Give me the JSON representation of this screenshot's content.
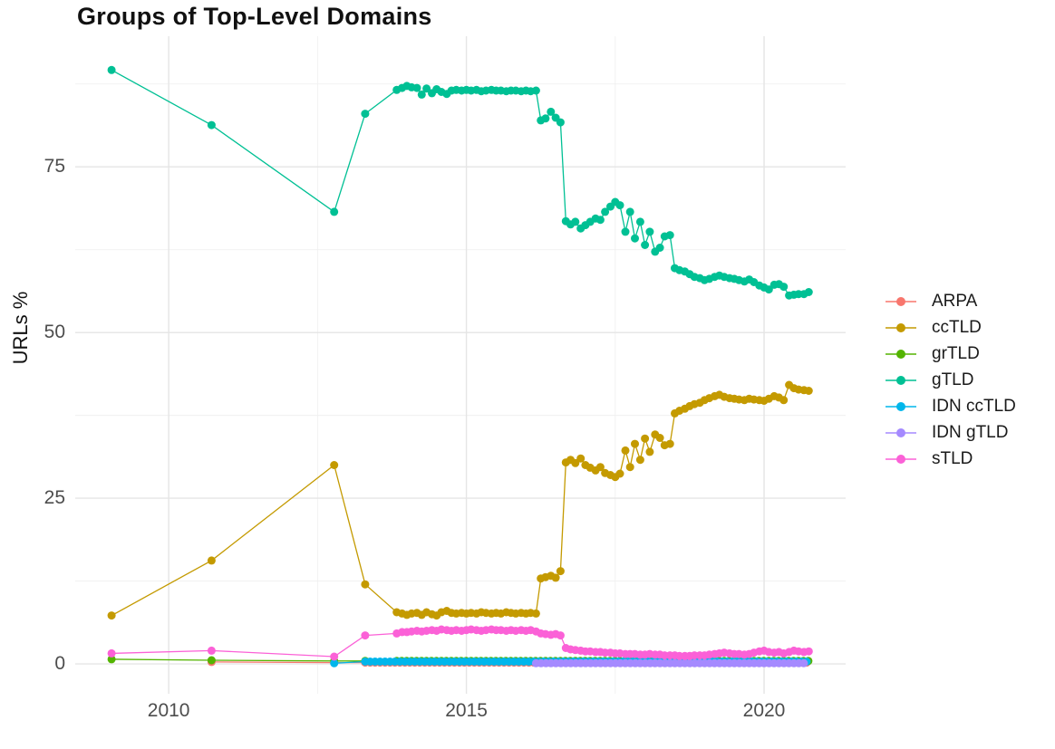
{
  "chart_data": {
    "type": "line",
    "title": "Groups of Top-Level Domains",
    "xlabel": "",
    "ylabel": "URLs %",
    "grid": "on",
    "legend_position": "right",
    "x_axis": {
      "ticks": [
        2010,
        2015,
        2020
      ],
      "minor_ticks": [
        2012.5,
        2017.5
      ],
      "domain": [
        2008.43,
        2021.37
      ]
    },
    "y_axis": {
      "ticks": [
        0,
        25,
        50,
        75
      ],
      "minor_ticks": [
        12.5,
        37.5,
        62.5,
        87.5
      ],
      "domain": [
        -4.5,
        94.7
      ]
    },
    "colors": {
      "major_grid": "#e5e5e5",
      "minor_grid": "#f0f0f0",
      "axis_text": "#4d4d4d",
      "title_text": "#111111"
    },
    "series": [
      {
        "name": "ARPA",
        "color": "#F8766D",
        "points": [
          [
            2010.72,
            0.3
          ],
          [
            2012.78,
            0.2
          ]
        ],
        "run": {
          "from": 2013.3,
          "to": 2020.75,
          "step": 0.0833,
          "value": 0.2
        }
      },
      {
        "name": "ccTLD",
        "color": "#C49A00",
        "points": [
          [
            2009.04,
            7.3
          ],
          [
            2010.72,
            15.6
          ],
          [
            2012.78,
            30.0
          ],
          [
            2013.3,
            12.0
          ],
          [
            2013.83,
            7.8
          ],
          [
            2013.92,
            7.6
          ],
          [
            2014.0,
            7.4
          ],
          [
            2014.08,
            7.6
          ],
          [
            2014.17,
            7.7
          ],
          [
            2014.25,
            7.4
          ],
          [
            2014.33,
            7.8
          ],
          [
            2014.42,
            7.5
          ],
          [
            2014.5,
            7.3
          ],
          [
            2014.58,
            7.8
          ],
          [
            2014.67,
            8.0
          ],
          [
            2014.75,
            7.7
          ],
          [
            2014.83,
            7.6
          ],
          [
            2014.92,
            7.7
          ],
          [
            2015.0,
            7.6
          ],
          [
            2015.08,
            7.7
          ],
          [
            2015.17,
            7.6
          ],
          [
            2015.25,
            7.8
          ],
          [
            2015.33,
            7.7
          ],
          [
            2015.42,
            7.6
          ],
          [
            2015.5,
            7.7
          ],
          [
            2015.58,
            7.6
          ],
          [
            2015.67,
            7.8
          ],
          [
            2015.75,
            7.7
          ],
          [
            2015.83,
            7.6
          ],
          [
            2015.92,
            7.7
          ],
          [
            2016.0,
            7.6
          ],
          [
            2016.08,
            7.7
          ],
          [
            2016.17,
            7.6
          ],
          [
            2016.25,
            12.9
          ],
          [
            2016.33,
            13.1
          ],
          [
            2016.42,
            13.3
          ],
          [
            2016.5,
            13.0
          ],
          [
            2016.58,
            14.0
          ],
          [
            2016.67,
            30.4
          ],
          [
            2016.75,
            30.8
          ],
          [
            2016.83,
            30.3
          ],
          [
            2016.92,
            31.0
          ],
          [
            2017.0,
            30.0
          ],
          [
            2017.08,
            29.6
          ],
          [
            2017.17,
            29.2
          ],
          [
            2017.25,
            29.7
          ],
          [
            2017.33,
            28.8
          ],
          [
            2017.42,
            28.5
          ],
          [
            2017.5,
            28.2
          ],
          [
            2017.58,
            28.7
          ],
          [
            2017.67,
            32.2
          ],
          [
            2017.75,
            29.7
          ],
          [
            2017.83,
            33.2
          ],
          [
            2017.92,
            30.8
          ],
          [
            2018.0,
            34.0
          ],
          [
            2018.08,
            32.0
          ],
          [
            2018.17,
            34.6
          ],
          [
            2018.25,
            34.1
          ],
          [
            2018.33,
            33.0
          ],
          [
            2018.42,
            33.2
          ],
          [
            2018.5,
            37.8
          ],
          [
            2018.58,
            38.2
          ],
          [
            2018.67,
            38.5
          ],
          [
            2018.75,
            38.9
          ],
          [
            2018.83,
            39.2
          ],
          [
            2018.92,
            39.4
          ],
          [
            2019.0,
            39.8
          ],
          [
            2019.08,
            40.1
          ],
          [
            2019.17,
            40.4
          ],
          [
            2019.25,
            40.6
          ],
          [
            2019.33,
            40.3
          ],
          [
            2019.42,
            40.1
          ],
          [
            2019.5,
            40.0
          ],
          [
            2019.58,
            39.9
          ],
          [
            2019.67,
            39.8
          ],
          [
            2019.75,
            40.0
          ],
          [
            2019.83,
            39.9
          ],
          [
            2019.92,
            39.8
          ],
          [
            2020.0,
            39.7
          ],
          [
            2020.08,
            40.0
          ],
          [
            2020.17,
            40.4
          ],
          [
            2020.25,
            40.2
          ],
          [
            2020.33,
            39.8
          ],
          [
            2020.42,
            42.1
          ],
          [
            2020.5,
            41.6
          ],
          [
            2020.58,
            41.4
          ],
          [
            2020.67,
            41.3
          ],
          [
            2020.75,
            41.2
          ]
        ]
      },
      {
        "name": "grTLD",
        "color": "#53B400",
        "points": [
          [
            2009.04,
            0.7
          ],
          [
            2010.72,
            0.55
          ],
          [
            2012.78,
            0.45
          ],
          [
            2013.3,
            0.45
          ]
        ],
        "run": {
          "from": 2013.83,
          "to": 2020.75,
          "step": 0.0833,
          "value": 0.45
        }
      },
      {
        "name": "gTLD",
        "color": "#00C094",
        "points": [
          [
            2009.04,
            89.6
          ],
          [
            2010.72,
            81.3
          ],
          [
            2012.78,
            68.2
          ],
          [
            2013.3,
            83.0
          ],
          [
            2013.83,
            86.6
          ],
          [
            2013.92,
            86.9
          ],
          [
            2014.0,
            87.2
          ],
          [
            2014.08,
            87.0
          ],
          [
            2014.17,
            86.9
          ],
          [
            2014.25,
            85.9
          ],
          [
            2014.33,
            86.8
          ],
          [
            2014.42,
            86.1
          ],
          [
            2014.5,
            86.7
          ],
          [
            2014.58,
            86.3
          ],
          [
            2014.67,
            86.0
          ],
          [
            2014.75,
            86.5
          ],
          [
            2014.83,
            86.6
          ],
          [
            2014.92,
            86.5
          ],
          [
            2015.0,
            86.6
          ],
          [
            2015.08,
            86.5
          ],
          [
            2015.17,
            86.6
          ],
          [
            2015.25,
            86.4
          ],
          [
            2015.33,
            86.5
          ],
          [
            2015.42,
            86.6
          ],
          [
            2015.5,
            86.5
          ],
          [
            2015.58,
            86.5
          ],
          [
            2015.67,
            86.4
          ],
          [
            2015.75,
            86.5
          ],
          [
            2015.83,
            86.5
          ],
          [
            2015.92,
            86.4
          ],
          [
            2016.0,
            86.5
          ],
          [
            2016.08,
            86.4
          ],
          [
            2016.17,
            86.5
          ],
          [
            2016.25,
            82.0
          ],
          [
            2016.33,
            82.3
          ],
          [
            2016.42,
            83.3
          ],
          [
            2016.5,
            82.4
          ],
          [
            2016.58,
            81.7
          ],
          [
            2016.67,
            66.8
          ],
          [
            2016.75,
            66.3
          ],
          [
            2016.83,
            66.7
          ],
          [
            2016.92,
            65.7
          ],
          [
            2017.0,
            66.2
          ],
          [
            2017.08,
            66.7
          ],
          [
            2017.17,
            67.2
          ],
          [
            2017.25,
            67.0
          ],
          [
            2017.33,
            68.2
          ],
          [
            2017.42,
            69.0
          ],
          [
            2017.5,
            69.7
          ],
          [
            2017.58,
            69.2
          ],
          [
            2017.67,
            65.2
          ],
          [
            2017.75,
            68.2
          ],
          [
            2017.83,
            64.2
          ],
          [
            2017.92,
            66.7
          ],
          [
            2018.0,
            63.2
          ],
          [
            2018.08,
            65.2
          ],
          [
            2018.17,
            62.2
          ],
          [
            2018.25,
            62.8
          ],
          [
            2018.33,
            64.5
          ],
          [
            2018.42,
            64.7
          ],
          [
            2018.5,
            59.7
          ],
          [
            2018.58,
            59.4
          ],
          [
            2018.67,
            59.2
          ],
          [
            2018.75,
            58.8
          ],
          [
            2018.83,
            58.4
          ],
          [
            2018.92,
            58.2
          ],
          [
            2019.0,
            57.9
          ],
          [
            2019.08,
            58.1
          ],
          [
            2019.17,
            58.4
          ],
          [
            2019.25,
            58.6
          ],
          [
            2019.33,
            58.4
          ],
          [
            2019.42,
            58.2
          ],
          [
            2019.5,
            58.1
          ],
          [
            2019.58,
            57.9
          ],
          [
            2019.67,
            57.7
          ],
          [
            2019.75,
            58.0
          ],
          [
            2019.83,
            57.6
          ],
          [
            2019.92,
            57.1
          ],
          [
            2020.0,
            56.8
          ],
          [
            2020.08,
            56.5
          ],
          [
            2020.17,
            57.2
          ],
          [
            2020.25,
            57.3
          ],
          [
            2020.33,
            56.9
          ],
          [
            2020.42,
            55.6
          ],
          [
            2020.5,
            55.7
          ],
          [
            2020.58,
            55.8
          ],
          [
            2020.67,
            55.8
          ],
          [
            2020.75,
            56.1
          ]
        ]
      },
      {
        "name": "IDN ccTLD",
        "color": "#00B6EB",
        "points": [
          [
            2012.78,
            0.1
          ]
        ],
        "run": {
          "from": 2013.3,
          "to": 2020.75,
          "step": 0.0833,
          "value": 0.35
        }
      },
      {
        "name": "IDN gTLD",
        "color": "#A58AFF",
        "points": [],
        "run": {
          "from": 2016.17,
          "to": 2020.75,
          "step": 0.0833,
          "value": 0.1
        }
      },
      {
        "name": "sTLD",
        "color": "#FB61D7",
        "points": [
          [
            2009.04,
            1.6
          ],
          [
            2010.72,
            2.0
          ],
          [
            2012.78,
            1.1
          ],
          [
            2013.3,
            4.3
          ],
          [
            2013.83,
            4.6
          ],
          [
            2013.92,
            4.8
          ],
          [
            2014.0,
            4.8
          ],
          [
            2014.08,
            4.9
          ],
          [
            2014.17,
            5.0
          ],
          [
            2014.25,
            4.9
          ],
          [
            2014.33,
            5.0
          ],
          [
            2014.42,
            5.1
          ],
          [
            2014.5,
            5.0
          ],
          [
            2014.58,
            5.2
          ],
          [
            2014.67,
            5.1
          ],
          [
            2014.75,
            5.0
          ],
          [
            2014.83,
            5.1
          ],
          [
            2014.92,
            5.0
          ],
          [
            2015.0,
            5.1
          ],
          [
            2015.08,
            5.2
          ],
          [
            2015.17,
            5.1
          ],
          [
            2015.25,
            5.0
          ],
          [
            2015.33,
            5.1
          ],
          [
            2015.42,
            5.2
          ],
          [
            2015.5,
            5.1
          ],
          [
            2015.58,
            5.1
          ],
          [
            2015.67,
            5.0
          ],
          [
            2015.75,
            5.1
          ],
          [
            2015.83,
            5.0
          ],
          [
            2015.92,
            5.1
          ],
          [
            2016.0,
            5.0
          ],
          [
            2016.08,
            5.1
          ],
          [
            2016.17,
            4.9
          ],
          [
            2016.25,
            4.6
          ],
          [
            2016.33,
            4.5
          ],
          [
            2016.42,
            4.4
          ],
          [
            2016.5,
            4.5
          ],
          [
            2016.58,
            4.3
          ],
          [
            2016.67,
            2.4
          ],
          [
            2016.75,
            2.2
          ],
          [
            2016.83,
            2.1
          ],
          [
            2016.92,
            2.0
          ],
          [
            2017.0,
            1.9
          ],
          [
            2017.08,
            1.9
          ],
          [
            2017.17,
            1.8
          ],
          [
            2017.25,
            1.8
          ],
          [
            2017.33,
            1.7
          ],
          [
            2017.42,
            1.7
          ],
          [
            2017.5,
            1.6
          ],
          [
            2017.58,
            1.6
          ],
          [
            2017.67,
            1.5
          ],
          [
            2017.75,
            1.5
          ],
          [
            2017.83,
            1.5
          ],
          [
            2017.92,
            1.4
          ],
          [
            2018.0,
            1.4
          ],
          [
            2018.08,
            1.5
          ],
          [
            2018.17,
            1.4
          ],
          [
            2018.25,
            1.4
          ],
          [
            2018.33,
            1.3
          ],
          [
            2018.42,
            1.3
          ],
          [
            2018.5,
            1.3
          ],
          [
            2018.58,
            1.2
          ],
          [
            2018.67,
            1.2
          ],
          [
            2018.75,
            1.2
          ],
          [
            2018.83,
            1.3
          ],
          [
            2018.92,
            1.3
          ],
          [
            2019.0,
            1.3
          ],
          [
            2019.08,
            1.4
          ],
          [
            2019.17,
            1.5
          ],
          [
            2019.25,
            1.6
          ],
          [
            2019.33,
            1.7
          ],
          [
            2019.42,
            1.6
          ],
          [
            2019.5,
            1.5
          ],
          [
            2019.58,
            1.5
          ],
          [
            2019.67,
            1.4
          ],
          [
            2019.75,
            1.5
          ],
          [
            2019.83,
            1.7
          ],
          [
            2019.92,
            1.9
          ],
          [
            2020.0,
            2.0
          ],
          [
            2020.08,
            1.8
          ],
          [
            2020.17,
            1.7
          ],
          [
            2020.25,
            1.8
          ],
          [
            2020.33,
            1.6
          ],
          [
            2020.42,
            1.8
          ],
          [
            2020.5,
            2.0
          ],
          [
            2020.58,
            1.9
          ],
          [
            2020.67,
            1.8
          ],
          [
            2020.75,
            1.9
          ]
        ]
      }
    ]
  }
}
